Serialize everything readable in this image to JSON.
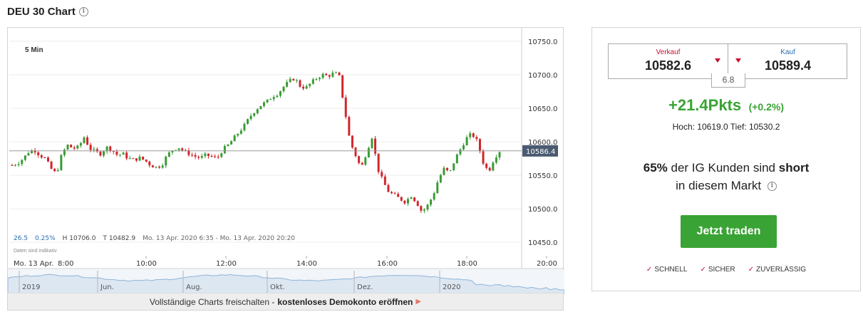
{
  "header": {
    "title": "DEU 30 Chart",
    "info_icon": "info-icon"
  },
  "chart": {
    "timeframe": "5 Min",
    "current_price_label": "10586.4",
    "stats": {
      "v1": "26.5",
      "v2": "0.25%",
      "high": "H 10706.0",
      "low": "T 10482.9",
      "range": "Mo. 13 Apr. 2020 6:35 - Mo. 13 Apr. 2020 20:20"
    },
    "disclaimer": "Daten sind indikativ",
    "banner": {
      "text": "Vollständige Charts freischalten -",
      "link": "kostenloses Demokonto eröffnen"
    },
    "colors": {
      "up": "#3a9b35",
      "down": "#d0262c",
      "nav_line": "#8fb4d8"
    }
  },
  "chart_data": {
    "type": "candlestick",
    "yticks": [
      "10750.0",
      "10700.0",
      "10650.0",
      "10600.0",
      "10550.0",
      "10500.0",
      "10450.0"
    ],
    "ylim": [
      10430,
      10770
    ],
    "xticks": [
      "Mo. 13 Apr.",
      "8:00",
      "10:00",
      "12:00",
      "14:00",
      "16:00",
      "18:00",
      "20:00"
    ],
    "current_price": 10586.4,
    "navigator_labels": [
      "2019",
      "Jun.",
      "Aug.",
      "Okt.",
      "Dez.",
      "2020"
    ],
    "series_keyframes": [
      10565,
      10568,
      10575,
      10585,
      10588,
      10580,
      10575,
      10560,
      10552,
      10582,
      10595,
      10590,
      10592,
      10607,
      10590,
      10585,
      10582,
      10592,
      10588,
      10580,
      10582,
      10575,
      10573,
      10576,
      10572,
      10565,
      10562,
      10565,
      10580,
      10588,
      10592,
      10586,
      10582,
      10578,
      10576,
      10580,
      10578,
      10575,
      10588,
      10595,
      10605,
      10615,
      10625,
      10638,
      10648,
      10655,
      10660,
      10668,
      10672,
      10682,
      10690,
      10695,
      10683,
      10680,
      10688,
      10695,
      10700,
      10698,
      10702,
      10700,
      10650,
      10600,
      10580,
      10560,
      10585,
      10608,
      10560,
      10540,
      10525,
      10520,
      10515,
      10510,
      10520,
      10510,
      10495,
      10505,
      10520,
      10545,
      10560,
      10553,
      10575,
      10590,
      10605,
      10612,
      10600,
      10570,
      10555,
      10575,
      10586
    ]
  },
  "panel": {
    "sell": {
      "label": "Verkauf",
      "value": "10582.6"
    },
    "buy": {
      "label": "Kauf",
      "value": "10589.4"
    },
    "spread": "6.8",
    "change_pts": "+21.4Pkts",
    "change_pct": "(+0.2%)",
    "high_low": "Hoch: 10619.0  Tief: 10530.2",
    "sentiment": {
      "pct": "65%",
      "text1": "der IG Kunden sind",
      "dir": "short",
      "text2": "in diesem Markt"
    },
    "trade_button": "Jetzt traden",
    "features": [
      "SCHNELL",
      "SICHER",
      "ZUVERLÄSSIG"
    ]
  }
}
